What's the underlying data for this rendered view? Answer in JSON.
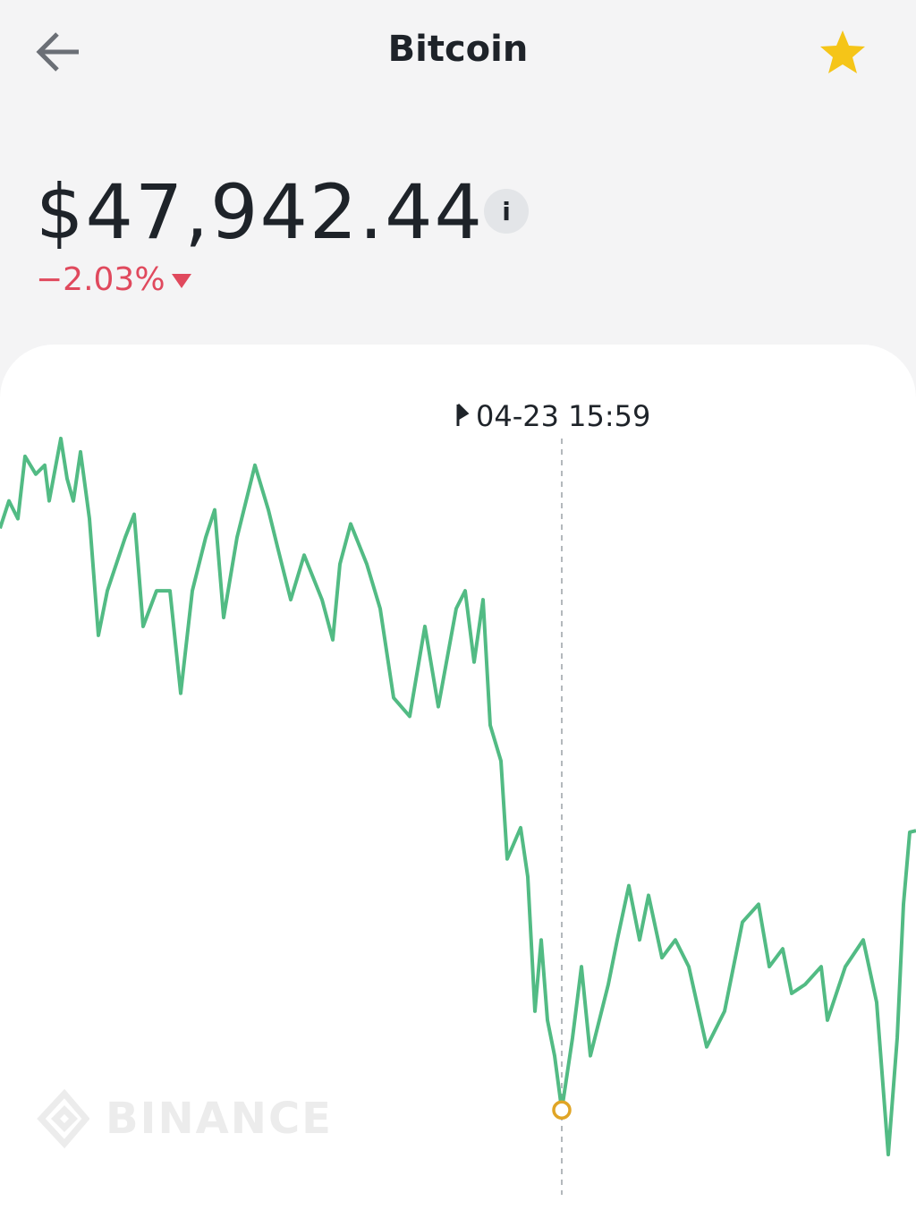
{
  "header": {
    "title": "Bitcoin"
  },
  "price": {
    "value": "$47,942.44",
    "change": "−2.03%"
  },
  "watermark": "BINANCE",
  "chart_data": {
    "type": "line",
    "color": "#52bb84",
    "xlim": [
      0,
      1024
    ],
    "ylim": [
      0,
      100
    ],
    "x": [
      0,
      10,
      20,
      28,
      40,
      50,
      55,
      68,
      75,
      82,
      90,
      100,
      110,
      120,
      130,
      140,
      150,
      160,
      175,
      190,
      202,
      215,
      230,
      240,
      250,
      265,
      285,
      300,
      310,
      325,
      340,
      360,
      372,
      380,
      392,
      410,
      425,
      440,
      458,
      475,
      490,
      510,
      520,
      530,
      540,
      548,
      560,
      567,
      582,
      590,
      598,
      605,
      612,
      620,
      628,
      640,
      650,
      660,
      680,
      690,
      703,
      715,
      725,
      740,
      755,
      770,
      790,
      810,
      830,
      848,
      860,
      875,
      885,
      900,
      918,
      925,
      945,
      965,
      980,
      993,
      1003,
      1010,
      1017,
      1024
    ],
    "values": [
      86.7,
      90.4,
      88.0,
      96.4,
      94.0,
      95.2,
      90.4,
      98.8,
      93.4,
      90.4,
      97.0,
      88.0,
      72.3,
      78.3,
      81.9,
      85.5,
      88.6,
      73.5,
      78.3,
      78.3,
      64.5,
      78.3,
      85.5,
      89.2,
      74.7,
      85.5,
      95.2,
      89.2,
      84.3,
      77.1,
      83.1,
      77.1,
      71.7,
      81.9,
      87.3,
      81.9,
      75.9,
      63.9,
      61.4,
      73.5,
      62.7,
      75.9,
      78.3,
      68.7,
      77.1,
      60.2,
      55.4,
      42.2,
      46.4,
      39.8,
      21.7,
      31.3,
      20.5,
      15.7,
      8.4,
      18.1,
      27.7,
      15.7,
      25.3,
      31.3,
      38.6,
      31.3,
      37.3,
      28.9,
      31.3,
      27.7,
      16.9,
      21.7,
      33.7,
      36.1,
      27.7,
      30.1,
      24.1,
      25.3,
      27.7,
      20.5,
      27.7,
      31.3,
      22.9,
      2.4,
      18.1,
      36.1,
      45.8,
      46.0
    ],
    "annotation": {
      "label": "04-23 15:59",
      "x": 628,
      "value": 8.4,
      "color": "#e0a526"
    }
  }
}
